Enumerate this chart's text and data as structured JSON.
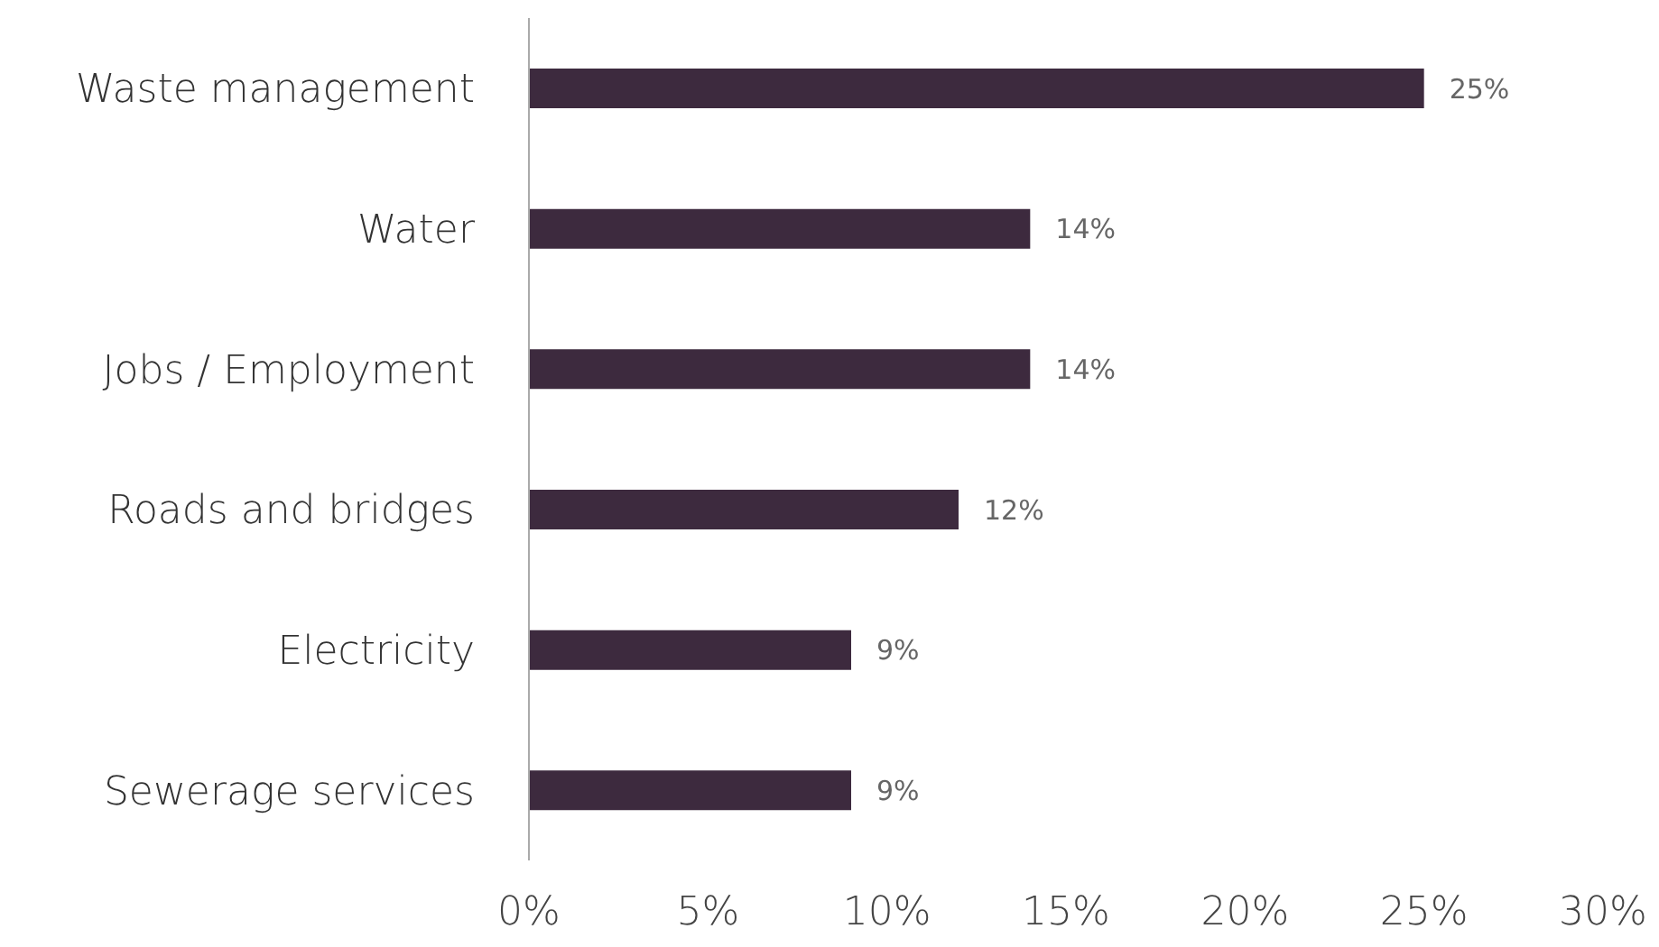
{
  "chart_data": {
    "type": "bar",
    "orientation": "horizontal",
    "categories": [
      "Waste management",
      "Water",
      "Jobs / Employment",
      "Roads and bridges",
      "Electricity",
      "Sewerage services"
    ],
    "values": [
      25,
      14,
      14,
      12,
      9,
      9
    ],
    "value_labels": [
      "25%",
      "14%",
      "14%",
      "12%",
      "9%",
      "9%"
    ],
    "color": "#3d2a3e",
    "xlim": [
      0,
      30
    ],
    "xticks": [
      {
        "value": 0,
        "label": "0%"
      },
      {
        "value": 5,
        "label": "5%"
      },
      {
        "value": 10,
        "label": "10%"
      },
      {
        "value": 15,
        "label": "15%"
      },
      {
        "value": 20,
        "label": "20%"
      },
      {
        "value": 25,
        "label": "25%"
      },
      {
        "value": 30,
        "label": "30%"
      }
    ],
    "grid": false,
    "legend": false
  }
}
